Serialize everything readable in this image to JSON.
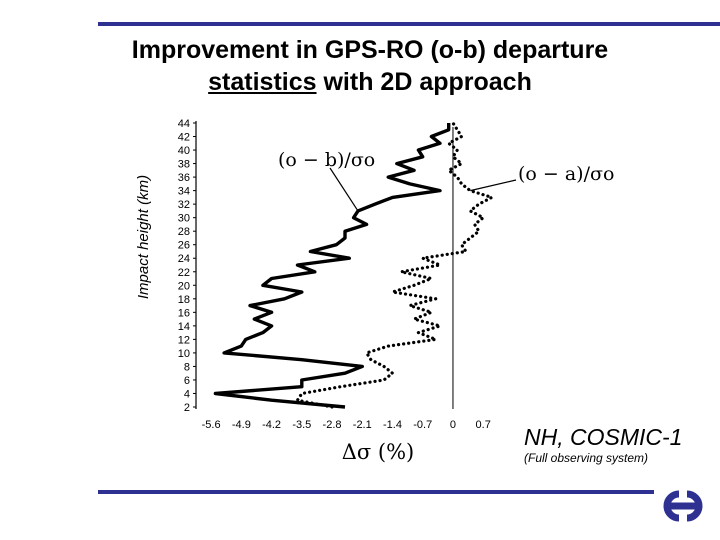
{
  "slide": {
    "title_line1": "Improvement in GPS-RO (o-b) departure",
    "title_line2_underlined": "statistics",
    "title_line2_rest": " with 2D approach",
    "caption_main": "NH, COSMIC-1",
    "caption_sub": "(Full observing system)",
    "rule_color": "#2e3192",
    "logo_icon": "ecmwf-logo-icon"
  },
  "chart_data": {
    "type": "line",
    "title": "",
    "xlabel": "Δσ (%)",
    "ylabel": "Impact height (km)",
    "xlim": [
      -5.95,
      0.95
    ],
    "ylim": [
      2,
      44
    ],
    "xticks": [
      "-5.6",
      "-4.9",
      "-4.2",
      "-3.5",
      "-2.8",
      "-2.1",
      "-1.4",
      "-0.7",
      "0",
      "0.7"
    ],
    "xtick_values": [
      -5.6,
      -4.9,
      -4.2,
      -3.5,
      -2.8,
      -2.1,
      -1.4,
      -0.7,
      0,
      0.7
    ],
    "yticks": [
      "2",
      "4",
      "6",
      "8",
      "10",
      "12",
      "14",
      "16",
      "18",
      "20",
      "22",
      "24",
      "26",
      "28",
      "30",
      "32",
      "34",
      "36",
      "38",
      "40",
      "42",
      "44"
    ],
    "ytick_values": [
      2,
      4,
      6,
      8,
      10,
      12,
      14,
      16,
      18,
      20,
      22,
      24,
      26,
      28,
      30,
      32,
      34,
      36,
      38,
      40,
      42,
      44
    ],
    "series": [
      {
        "name": "(o − b)/σo",
        "style": "solid",
        "heights": [
          2,
          3,
          4,
          5,
          6,
          7,
          8,
          9,
          10,
          11,
          12,
          13,
          14,
          15,
          16,
          17,
          18,
          19,
          20,
          21,
          22,
          23,
          24,
          25,
          26,
          27,
          28,
          29,
          30,
          31,
          32,
          33,
          34,
          35,
          36,
          37,
          38,
          39,
          40,
          41,
          42,
          43,
          44
        ],
        "values": [
          -2.5,
          -4.2,
          -5.5,
          -3.5,
          -3.5,
          -2.5,
          -2.1,
          -3.5,
          -5.3,
          -4.9,
          -4.8,
          -4.4,
          -4.2,
          -4.6,
          -4.2,
          -4.7,
          -3.9,
          -3.5,
          -4.4,
          -4.2,
          -3.2,
          -3.6,
          -2.4,
          -3.3,
          -2.7,
          -2.5,
          -2.5,
          -2.0,
          -2.3,
          -2.2,
          -1.8,
          -1.4,
          -0.3,
          -1.0,
          -1.5,
          -0.9,
          -1.3,
          -0.7,
          -0.8,
          -0.3,
          -0.5,
          -0.1,
          -0.1
        ]
      },
      {
        "name": "(o − a)/σo",
        "style": "dotted",
        "heights": [
          2,
          3,
          4,
          5,
          6,
          7,
          8,
          9,
          10,
          11,
          12,
          13,
          14,
          15,
          16,
          17,
          18,
          19,
          20,
          21,
          22,
          23,
          24,
          25,
          26,
          27,
          28,
          29,
          30,
          31,
          32,
          33,
          34,
          35,
          36,
          37,
          38,
          39,
          40,
          41,
          42,
          43,
          44
        ],
        "values": [
          -2.8,
          -3.6,
          -3.5,
          -2.6,
          -1.6,
          -1.4,
          -1.6,
          -1.9,
          -2.0,
          -1.5,
          -0.4,
          -0.8,
          -0.3,
          -0.9,
          -0.5,
          -1.0,
          -0.4,
          -1.4,
          -0.9,
          -0.5,
          -1.2,
          -0.3,
          -0.7,
          0.3,
          0.2,
          0.4,
          0.6,
          0.5,
          0.7,
          0.4,
          0.6,
          0.9,
          0.4,
          0.2,
          0.1,
          -0.1,
          0.2,
          0.0,
          0.1,
          -0.1,
          0.2,
          0.1,
          0.0
        ]
      }
    ],
    "annotations": [
      {
        "label": "(o − b)/σo",
        "series": 0,
        "at_height": 31
      },
      {
        "label": "(o − a)/σo",
        "series": 1,
        "at_height": 34
      }
    ]
  }
}
